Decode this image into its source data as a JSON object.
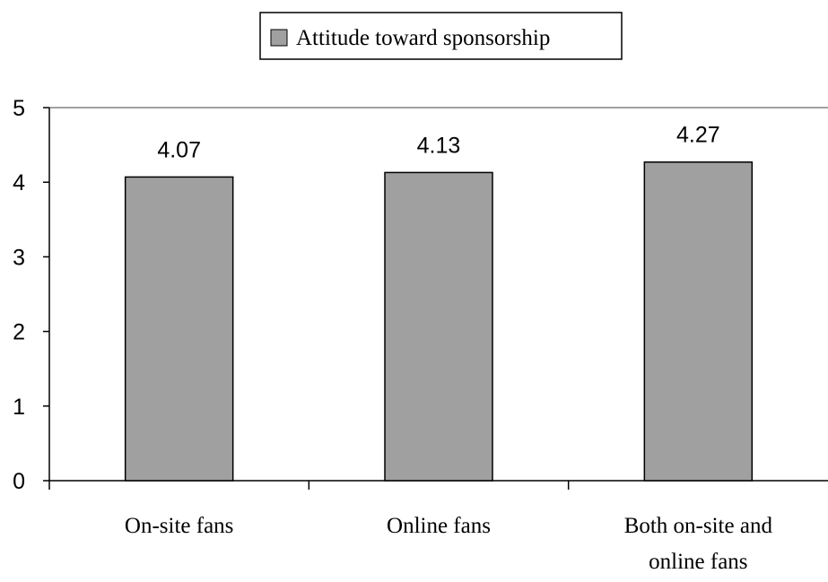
{
  "chart_data": {
    "type": "bar",
    "categories": [
      "On-site fans",
      "Online fans",
      "Both on-site and online fans"
    ],
    "category_label_lines": [
      [
        "On-site fans"
      ],
      [
        "Online fans"
      ],
      [
        "Both on-site and",
        "online fans"
      ]
    ],
    "series": [
      {
        "name": "Attitude toward sponsorship",
        "values": [
          4.07,
          4.13,
          4.27
        ]
      }
    ],
    "data_labels": [
      "4.07",
      "4.13",
      "4.27"
    ],
    "ylim": [
      0,
      5
    ],
    "yticks": [
      0,
      1,
      2,
      3,
      4,
      5
    ],
    "ytick_labels": [
      "0",
      "1",
      "2",
      "3",
      "4",
      "5"
    ],
    "xlabel": "",
    "ylabel": "",
    "title": "",
    "grid": false,
    "legend_position": "top-center",
    "colors": {
      "bar_fill": "#a0a0a0",
      "bar_stroke": "#000000",
      "axis": "#000000"
    }
  }
}
